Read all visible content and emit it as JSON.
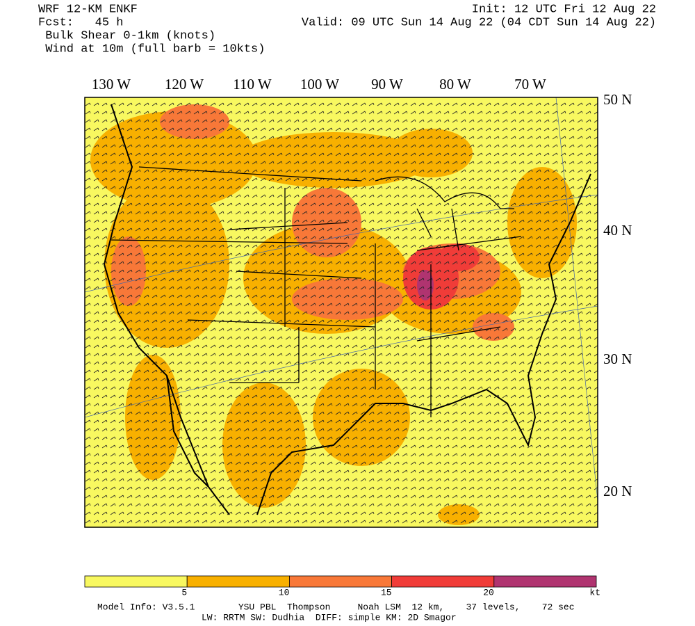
{
  "header": {
    "left": [
      "WRF 12-KM ENKF",
      "Fcst:   45 h",
      " Bulk Shear 0-1km (knots)",
      " Wind at 10m (full barb = 10kts)"
    ],
    "right": [
      "Init: 12 UTC Fri 12 Aug 22",
      "Valid: 09 UTC Sun 14 Aug 22 (04 CDT Sun 14 Aug 22)"
    ]
  },
  "map": {
    "lon_labels": [
      "130 W",
      "120 W",
      "110 W",
      "100 W",
      "90 W",
      "80 W",
      "70 W"
    ],
    "lat_labels": [
      "50 N",
      "40 N",
      "30 N",
      "20 N"
    ]
  },
  "colorbar": {
    "lim": [
      0,
      25
    ],
    "ticks": [
      5,
      10,
      15,
      20
    ],
    "unit": "kt",
    "colors": [
      "#f8f860",
      "#f8b000",
      "#f87838",
      "#f03c38",
      "#b03470"
    ]
  },
  "footer": [
    "Model Info: V3.5.1        YSU PBL  Thompson     Noah LSM  12 km,    37 levels,    72 sec",
    "LW: RRTM SW: Dudhia  DIFF: simple KM: 2D Smagor"
  ]
}
